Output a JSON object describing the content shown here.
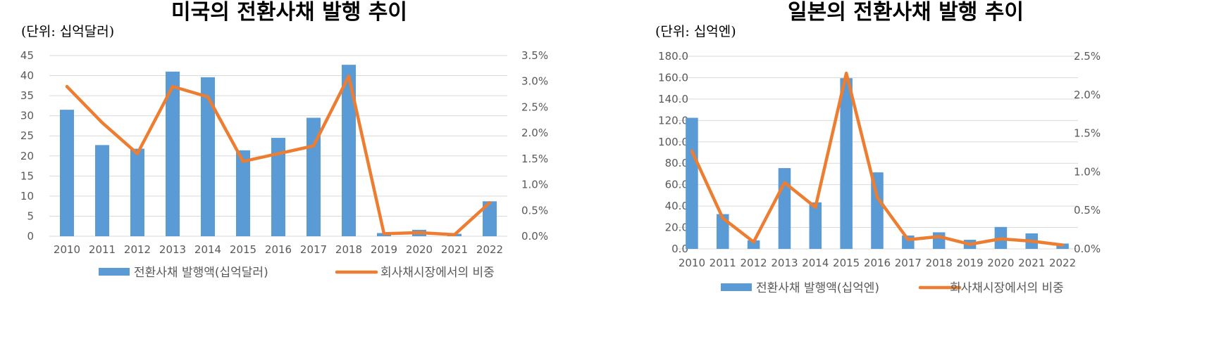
{
  "charts": [
    {
      "title": "미국의 전환사채 발행 추이",
      "unit": "(단위: 십억달러)",
      "left_ticks": [
        "0",
        "5",
        "10",
        "15",
        "20",
        "25",
        "30",
        "35",
        "40",
        "45"
      ],
      "right_ticks": [
        "0.0%",
        "0.5%",
        "1.0%",
        "1.5%",
        "2.0%",
        "2.5%",
        "3.0%",
        "3.5%"
      ],
      "legend_bar": "전환사채 발행액(십억달러)",
      "legend_line": "회사채시장에서의 비중"
    },
    {
      "title": "일본의 전환사채 발행 추이",
      "unit": "(단위: 십억엔)",
      "left_ticks": [
        "0.0",
        "20.0",
        "40.0",
        "60.0",
        "80.0",
        "100.0",
        "120.0",
        "140.0",
        "160.0",
        "180.0"
      ],
      "right_ticks": [
        "0.0%",
        "0.5%",
        "1.0%",
        "1.5%",
        "2.0%",
        "2.5%"
      ],
      "legend_bar": "전환사채 발행액(십억엔)",
      "legend_line": "회사채시장에서의 비중"
    }
  ],
  "chart_data": [
    {
      "type": "bar",
      "title": "미국의 전환사채 발행 추이",
      "categories": [
        "2010",
        "2011",
        "2012",
        "2013",
        "2014",
        "2015",
        "2016",
        "2017",
        "2018",
        "2019",
        "2020",
        "2021",
        "2022"
      ],
      "series": [
        {
          "name": "전환사채 발행액(십억달러)",
          "type": "bar",
          "axis": "left",
          "values": [
            31.5,
            22.7,
            21.8,
            41.0,
            39.6,
            21.4,
            24.5,
            29.5,
            42.7,
            0.8,
            1.6,
            0.6,
            8.7
          ]
        },
        {
          "name": "회사채시장에서의 비중",
          "type": "line",
          "axis": "right",
          "unit": "%",
          "values": [
            2.9,
            2.2,
            1.6,
            2.9,
            2.7,
            1.45,
            1.6,
            1.75,
            3.1,
            0.05,
            0.07,
            0.03,
            0.65
          ]
        }
      ],
      "ylim_left": [
        0,
        45
      ],
      "ylim_right": [
        0,
        3.5
      ],
      "grid": true,
      "legend": "bottom",
      "colors": {
        "bar": "#5b9bd5",
        "line": "#ed7d31"
      }
    },
    {
      "type": "bar",
      "title": "일본의 전환사채 발행 추이",
      "categories": [
        "2010",
        "2011",
        "2012",
        "2013",
        "2014",
        "2015",
        "2016",
        "2017",
        "2018",
        "2019",
        "2020",
        "2021",
        "2022"
      ],
      "series": [
        {
          "name": "전환사채 발행액(십억엔)",
          "type": "bar",
          "axis": "left",
          "values": [
            122.5,
            32.5,
            8.0,
            75.5,
            43.5,
            159.5,
            71.5,
            12.5,
            15.5,
            8.5,
            20.5,
            14.5,
            5.0
          ]
        },
        {
          "name": "회사채시장에서의 비중",
          "type": "line",
          "axis": "right",
          "unit": "%",
          "values": [
            1.27,
            0.4,
            0.09,
            0.86,
            0.54,
            2.28,
            0.67,
            0.12,
            0.16,
            0.06,
            0.13,
            0.1,
            0.05
          ]
        }
      ],
      "ylim_left": [
        0,
        180
      ],
      "ylim_right": [
        0,
        2.5
      ],
      "grid": true,
      "legend": "bottom",
      "colors": {
        "bar": "#5b9bd5",
        "line": "#ed7d31"
      }
    }
  ]
}
